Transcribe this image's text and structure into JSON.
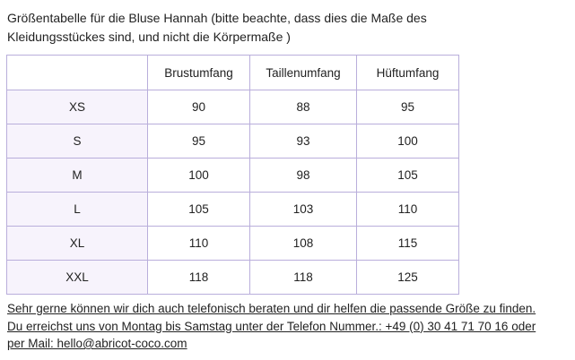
{
  "intro": {
    "line1": "Größentabelle für die Bluse Hannah (bitte beachte, dass dies die Maße des",
    "line2": "Kleidungsstückes sind, und nicht die Körpermaße )"
  },
  "table": {
    "headers": [
      "",
      "Brustumfang",
      "Taillenumfang",
      "Hüftumfang"
    ],
    "rows": [
      {
        "size": "XS",
        "brust": "90",
        "taille": "88",
        "huefte": "95"
      },
      {
        "size": "S",
        "brust": "95",
        "taille": "93",
        "huefte": "100"
      },
      {
        "size": "M",
        "brust": "100",
        "taille": "98",
        "huefte": "105"
      },
      {
        "size": "L",
        "brust": "105",
        "taille": "103",
        "huefte": "110"
      },
      {
        "size": "XL",
        "brust": "110",
        "taille": "108",
        "huefte": "115"
      },
      {
        "size": "XXL",
        "brust": "118",
        "taille": "118",
        "huefte": "125"
      }
    ]
  },
  "footer": {
    "line1": "Sehr gerne können wir dich auch telefonisch beraten und dir helfen die passende Größe zu finden.",
    "line2": "Du erreichst uns von Montag bis Samstag unter der Telefon Nummer.: +49 (0) 30 41 71 70 16 oder",
    "line3_prefix": "per Mail: ",
    "email": "hello@abricot-coco.com"
  },
  "colors": {
    "border": "#b9aedb",
    "size_cell_bg": "#f7f3fc",
    "text": "#222222"
  }
}
